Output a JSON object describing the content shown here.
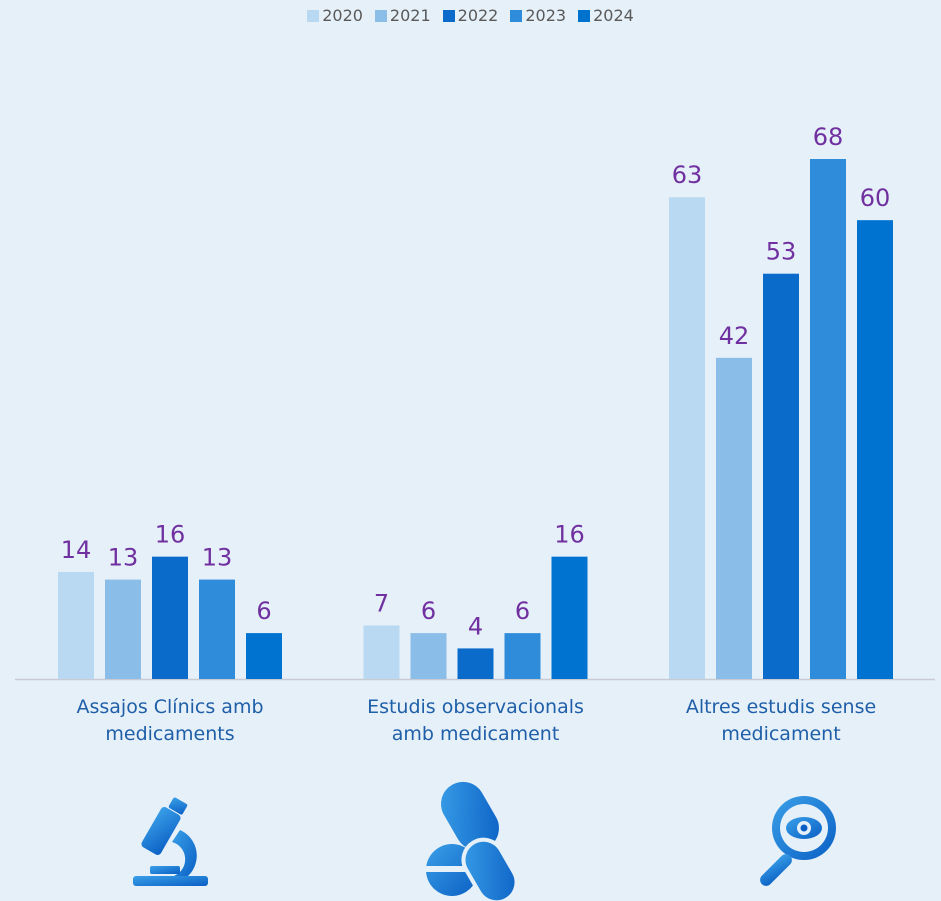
{
  "chart_data": {
    "type": "bar",
    "categories": [
      "Assajos Clínics amb medicaments",
      "Estudis observacionals amb medicament",
      "Altres estudis sense medicament"
    ],
    "series": [
      {
        "name": "2020",
        "color": "#b9d8f1",
        "values": [
          14,
          7,
          63
        ]
      },
      {
        "name": "2021",
        "color": "#8bbde9",
        "values": [
          13,
          6,
          42
        ]
      },
      {
        "name": "2022",
        "color": "#0a6bcb",
        "values": [
          16,
          4,
          53
        ]
      },
      {
        "name": "2023",
        "color": "#2f8cdb",
        "values": [
          13,
          6,
          68
        ]
      },
      {
        "name": "2024",
        "color": "#0072cf",
        "values": [
          6,
          16,
          60
        ]
      }
    ]
  }
}
